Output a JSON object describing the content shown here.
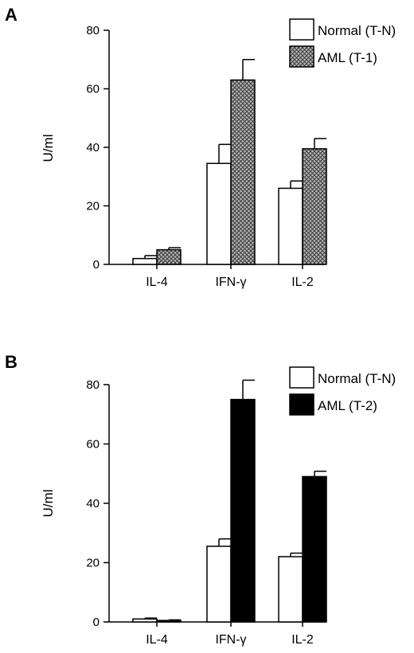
{
  "chart_data": [
    {
      "panel": "A",
      "type": "bar",
      "ylabel": "U/ml",
      "ylim": [
        0,
        80
      ],
      "yticks": [
        "0",
        "20",
        "40",
        "60",
        "80"
      ],
      "categories": [
        "IL-4",
        "IFN-γ",
        "IL-2"
      ],
      "legend_position": "top-right",
      "series": [
        {
          "name": "Normal (T-N)",
          "values": [
            2,
            34.5,
            26
          ],
          "errors": [
            1,
            6.5,
            2.5
          ],
          "fill": "#ffffff",
          "pattern": "none"
        },
        {
          "name": "AML (T-1)",
          "values": [
            5,
            63,
            39.5
          ],
          "errors": [
            0.7,
            7,
            3.5
          ],
          "fill": "#9a9a9a",
          "pattern": "crosshatch"
        }
      ]
    },
    {
      "panel": "B",
      "type": "bar",
      "ylabel": "U/ml",
      "ylim": [
        0,
        80
      ],
      "yticks": [
        "0",
        "20",
        "40",
        "60",
        "80"
      ],
      "categories": [
        "IL-4",
        "IFN-γ",
        "IL-2"
      ],
      "legend_position": "top-right",
      "series": [
        {
          "name": "Normal (T-N)",
          "values": [
            1,
            25.5,
            22
          ],
          "errors": [
            0.3,
            2.5,
            1.2
          ],
          "fill": "#ffffff",
          "pattern": "none"
        },
        {
          "name": "AML (T-2)",
          "values": [
            0.5,
            75,
            49
          ],
          "errors": [
            0.2,
            6.5,
            1.8
          ],
          "fill": "#000000",
          "pattern": "none"
        }
      ]
    }
  ]
}
